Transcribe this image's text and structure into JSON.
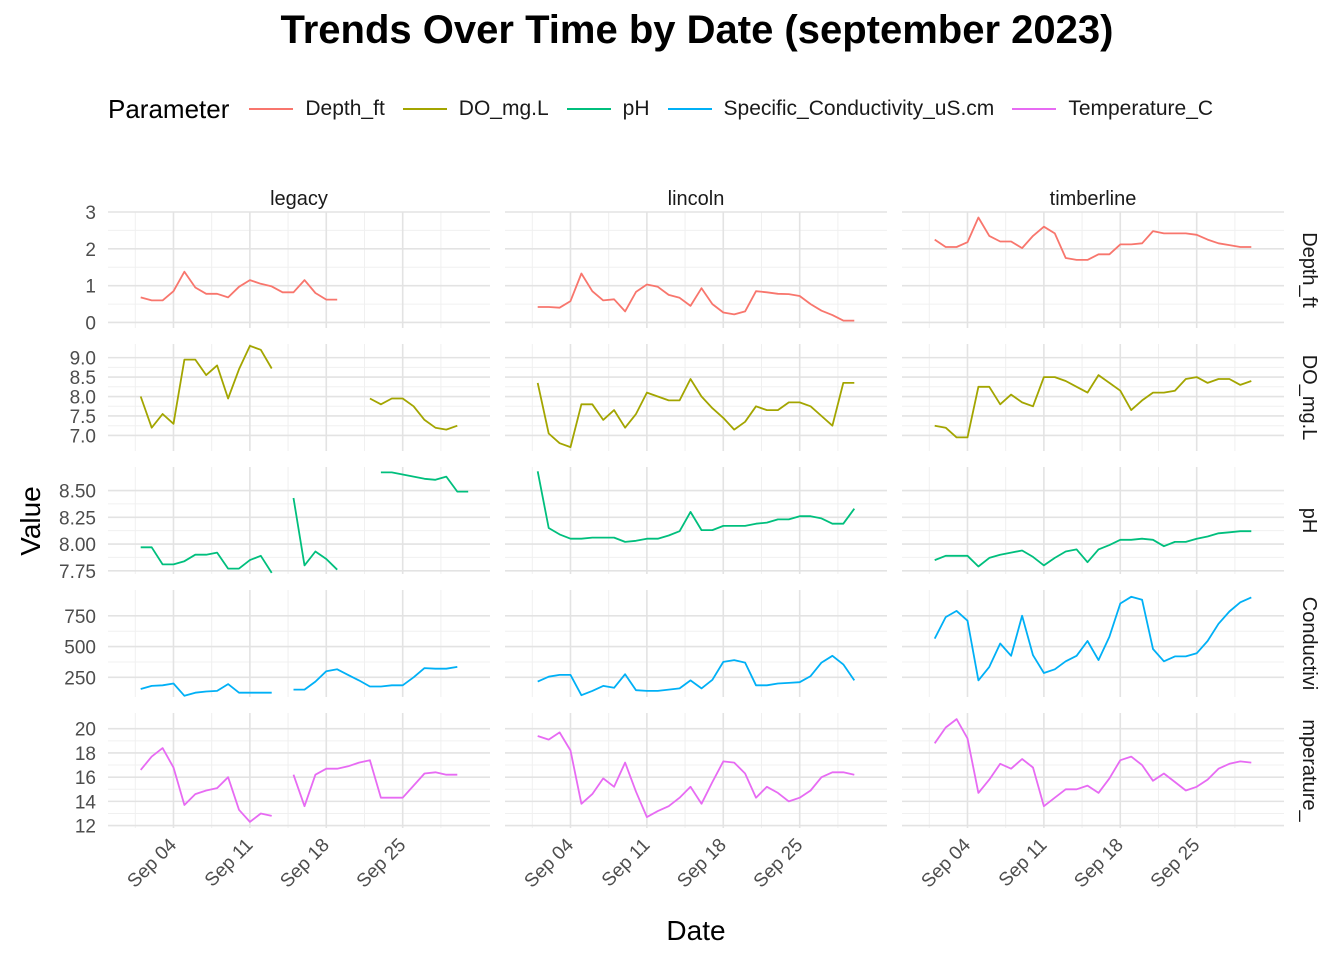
{
  "chart_data": {
    "type": "line",
    "title": "Trends Over Time by Date (september 2023)",
    "xlabel": "Date",
    "ylabel": "Value",
    "legend": {
      "title": "Parameter",
      "position": "top",
      "entries": [
        "Depth_ft",
        "DO_mg.L",
        "pH",
        "Specific_Conductivity_uS.cm",
        "Temperature_C"
      ]
    },
    "colors": {
      "Depth_ft": "#F8766D",
      "DO_mg.L": "#A3A500",
      "pH": "#00BF7D",
      "Specific_Conductivity_uS.cm": "#00B0F6",
      "Temperature_C": "#E76BF3"
    },
    "facet_columns": [
      "legacy",
      "lincoln",
      "timberline"
    ],
    "facet_row_labels": [
      "Depth_ft",
      "DO_mg.L",
      "pH",
      "Conductivi",
      "mperature_"
    ],
    "x_axis": {
      "type": "date",
      "range": [
        "2023-08-29",
        "2023-10-03"
      ],
      "tick_values": [
        "2023-09-04",
        "2023-09-11",
        "2023-09-18",
        "2023-09-25"
      ],
      "tick_labels": [
        "Sep 04",
        "Sep 11",
        "Sep 18",
        "Sep 25"
      ]
    },
    "dates": [
      "2023-09-01",
      "2023-09-02",
      "2023-09-03",
      "2023-09-04",
      "2023-09-05",
      "2023-09-06",
      "2023-09-07",
      "2023-09-08",
      "2023-09-09",
      "2023-09-10",
      "2023-09-11",
      "2023-09-12",
      "2023-09-13",
      "2023-09-14",
      "2023-09-15",
      "2023-09-16",
      "2023-09-17",
      "2023-09-18",
      "2023-09-19",
      "2023-09-20",
      "2023-09-21",
      "2023-09-22",
      "2023-09-23",
      "2023-09-24",
      "2023-09-25",
      "2023-09-26",
      "2023-09-27",
      "2023-09-28",
      "2023-09-29",
      "2023-09-30",
      "2023-10-01"
    ],
    "panels": [
      {
        "parameter": "Depth_ft",
        "ylim": [
          -0.15,
          3.0
        ],
        "ticks": [
          0,
          1,
          2,
          3
        ],
        "tick_labels": [
          "0",
          "1",
          "2",
          "3"
        ],
        "series": {
          "legacy": [
            0.68,
            0.6,
            0.6,
            0.85,
            1.38,
            0.95,
            0.78,
            0.78,
            0.68,
            0.97,
            1.15,
            1.05,
            0.98,
            0.82,
            0.82,
            1.15,
            0.8,
            0.62,
            0.62,
            null,
            null,
            null,
            null,
            null,
            null,
            null,
            null,
            null,
            null,
            null,
            null
          ],
          "lincoln": [
            0.42,
            0.42,
            0.4,
            0.58,
            1.33,
            0.85,
            0.6,
            0.63,
            0.3,
            0.83,
            1.03,
            0.97,
            0.75,
            0.67,
            0.45,
            0.93,
            0.5,
            0.27,
            0.22,
            0.3,
            0.85,
            0.82,
            0.78,
            0.77,
            0.72,
            0.5,
            0.32,
            0.2,
            0.05,
            0.05,
            null
          ],
          "timberline": [
            2.25,
            2.05,
            2.05,
            2.18,
            2.85,
            2.35,
            2.2,
            2.2,
            2.02,
            2.35,
            2.6,
            2.42,
            1.75,
            1.7,
            1.7,
            1.85,
            1.85,
            2.12,
            2.12,
            2.15,
            2.48,
            2.42,
            2.42,
            2.42,
            2.38,
            2.25,
            2.15,
            2.1,
            2.05,
            2.05,
            null
          ]
        }
      },
      {
        "parameter": "DO_mg.L",
        "ylim": [
          6.6,
          9.35
        ],
        "ticks": [
          7.0,
          7.5,
          8.0,
          8.5,
          9.0
        ],
        "tick_labels": [
          "7.0",
          "7.5",
          "8.0",
          "8.5",
          "9.0"
        ],
        "series": {
          "legacy": [
            8.0,
            7.2,
            7.55,
            7.3,
            8.95,
            8.95,
            8.55,
            8.8,
            7.95,
            8.7,
            9.3,
            9.2,
            8.72,
            null,
            null,
            null,
            null,
            null,
            null,
            null,
            null,
            7.95,
            7.8,
            7.95,
            7.95,
            7.75,
            7.4,
            7.2,
            7.15,
            7.25,
            null
          ],
          "lincoln": [
            8.35,
            7.05,
            6.8,
            6.7,
            7.8,
            7.8,
            7.4,
            7.65,
            7.2,
            7.55,
            8.1,
            8.0,
            7.9,
            7.9,
            8.45,
            8.0,
            7.7,
            7.45,
            7.15,
            7.35,
            7.75,
            7.65,
            7.65,
            7.85,
            7.85,
            7.75,
            7.5,
            7.25,
            8.35,
            8.35,
            null
          ],
          "timberline": [
            7.25,
            7.2,
            6.95,
            6.95,
            8.25,
            8.25,
            7.8,
            8.05,
            7.85,
            7.75,
            8.5,
            8.5,
            8.4,
            8.25,
            8.1,
            8.55,
            8.35,
            8.15,
            7.65,
            7.9,
            8.1,
            8.1,
            8.15,
            8.45,
            8.5,
            8.35,
            8.45,
            8.45,
            8.3,
            8.4,
            null
          ]
        }
      },
      {
        "parameter": "pH",
        "ylim": [
          7.72,
          8.72
        ],
        "ticks": [
          7.75,
          8.0,
          8.25,
          8.5
        ],
        "tick_labels": [
          "7.75",
          "8.00",
          "8.25",
          "8.50"
        ],
        "series": {
          "legacy": [
            7.97,
            7.97,
            7.81,
            7.81,
            7.84,
            7.9,
            7.9,
            7.92,
            7.77,
            7.77,
            7.85,
            7.89,
            7.73,
            null,
            8.43,
            7.8,
            7.93,
            7.86,
            7.76,
            null,
            null,
            null,
            8.67,
            8.67,
            8.65,
            8.63,
            8.61,
            8.6,
            8.63,
            8.49,
            8.49
          ],
          "lincoln": [
            8.68,
            8.15,
            8.09,
            8.05,
            8.05,
            8.06,
            8.06,
            8.06,
            8.02,
            8.03,
            8.05,
            8.05,
            8.08,
            8.12,
            8.3,
            8.13,
            8.13,
            8.17,
            8.17,
            8.17,
            8.19,
            8.2,
            8.23,
            8.23,
            8.26,
            8.26,
            8.24,
            8.19,
            8.19,
            8.33,
            null
          ],
          "timberline": [
            7.85,
            7.89,
            7.89,
            7.89,
            7.79,
            7.87,
            7.9,
            7.92,
            7.94,
            7.88,
            7.8,
            7.87,
            7.93,
            7.95,
            7.83,
            7.95,
            7.99,
            8.04,
            8.04,
            8.05,
            8.04,
            7.98,
            8.02,
            8.02,
            8.05,
            8.07,
            8.1,
            8.11,
            8.12,
            8.12,
            null
          ]
        }
      },
      {
        "parameter": "Specific_Conductivity_uS.cm",
        "ylim": [
          90,
          960
        ],
        "ticks": [
          250,
          500,
          750
        ],
        "tick_labels": [
          "250",
          "500",
          "750"
        ],
        "series": {
          "legacy": [
            155,
            180,
            185,
            200,
            100,
            125,
            135,
            140,
            195,
            125,
            125,
            125,
            125,
            null,
            150,
            150,
            215,
            300,
            315,
            270,
            225,
            175,
            175,
            185,
            185,
            250,
            325,
            320,
            320,
            335,
            null
          ],
          "lincoln": [
            215,
            255,
            270,
            270,
            105,
            140,
            180,
            165,
            275,
            145,
            140,
            140,
            150,
            160,
            225,
            160,
            230,
            375,
            390,
            370,
            185,
            185,
            200,
            205,
            210,
            260,
            370,
            425,
            355,
            225,
            null
          ],
          "timberline": [
            565,
            740,
            790,
            710,
            225,
            335,
            525,
            425,
            750,
            430,
            285,
            315,
            380,
            425,
            545,
            390,
            580,
            850,
            905,
            880,
            480,
            380,
            420,
            420,
            445,
            545,
            685,
            785,
            860,
            900,
            null
          ]
        }
      },
      {
        "parameter": "Temperature_C",
        "ylim": [
          11.8,
          21.3
        ],
        "ticks": [
          12,
          14,
          16,
          18,
          20
        ],
        "tick_labels": [
          "12",
          "14",
          "16",
          "18",
          "20"
        ],
        "series": {
          "legacy": [
            16.6,
            17.7,
            18.4,
            16.8,
            13.7,
            14.6,
            14.9,
            15.1,
            16.0,
            13.3,
            12.3,
            13.0,
            12.8,
            null,
            16.2,
            13.6,
            16.2,
            16.7,
            16.7,
            16.9,
            17.2,
            17.4,
            14.3,
            14.3,
            14.3,
            15.3,
            16.3,
            16.4,
            16.2,
            16.2,
            null
          ],
          "lincoln": [
            19.4,
            19.1,
            19.7,
            18.2,
            13.8,
            14.6,
            15.9,
            15.2,
            17.2,
            14.8,
            12.7,
            13.2,
            13.6,
            14.3,
            15.2,
            13.8,
            15.6,
            17.3,
            17.2,
            16.3,
            14.3,
            15.2,
            14.7,
            14.0,
            14.3,
            14.9,
            16.0,
            16.4,
            16.4,
            16.2,
            null
          ],
          "timberline": [
            18.8,
            20.1,
            20.8,
            19.2,
            14.7,
            15.8,
            17.1,
            16.7,
            17.5,
            16.8,
            13.6,
            14.3,
            15.0,
            15.0,
            15.3,
            14.7,
            15.9,
            17.4,
            17.7,
            17.0,
            15.7,
            16.3,
            15.6,
            14.9,
            15.2,
            15.8,
            16.7,
            17.1,
            17.3,
            17.2,
            null
          ]
        }
      }
    ],
    "grid": true
  }
}
